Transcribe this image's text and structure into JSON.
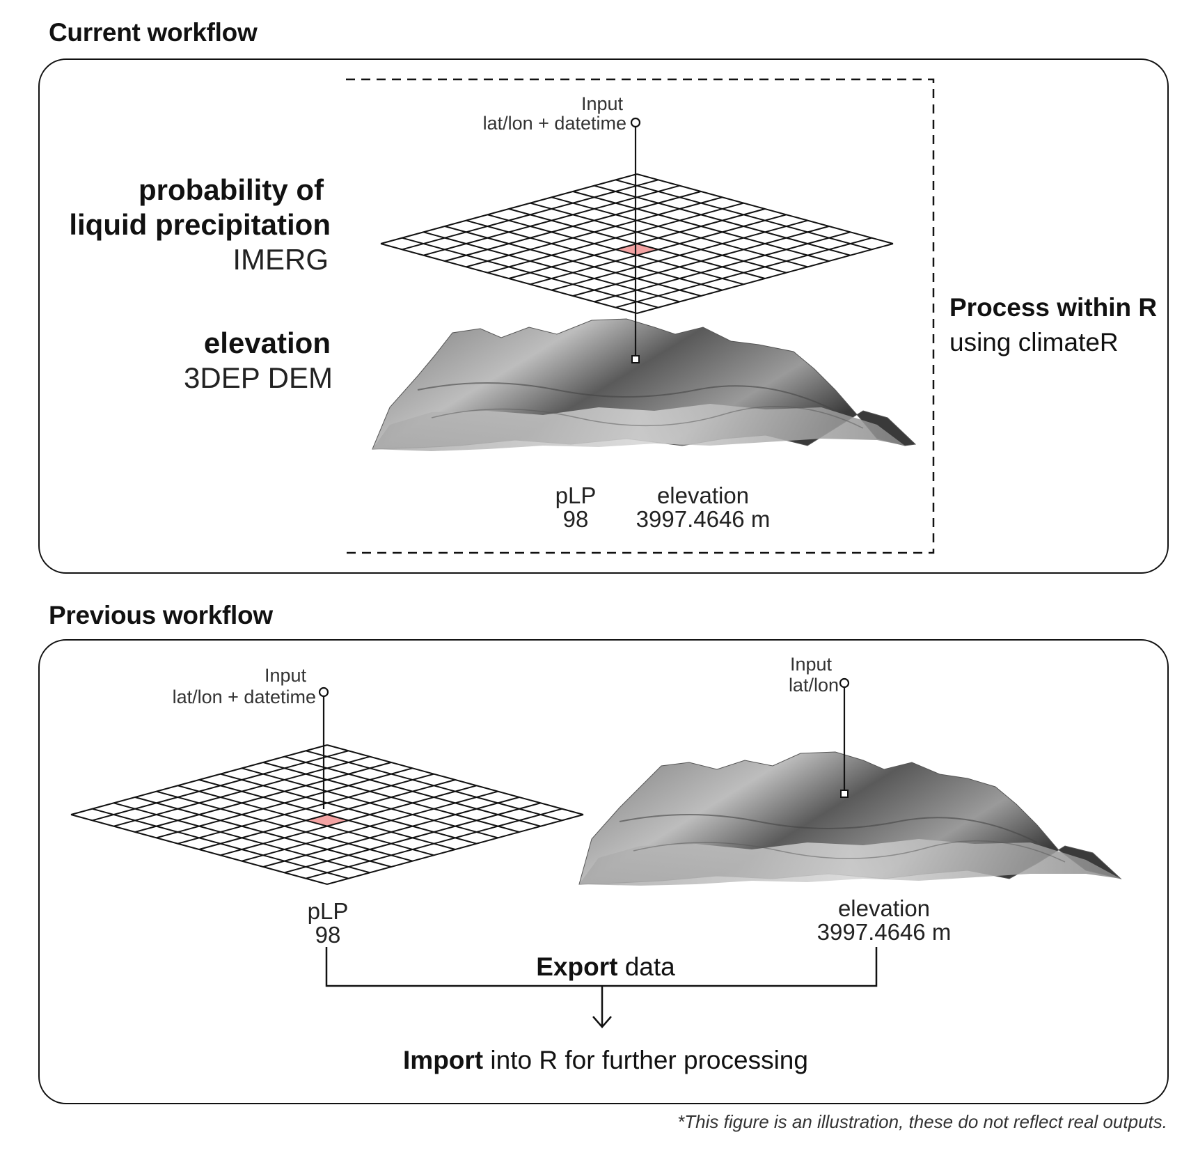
{
  "current": {
    "title": "Current workflow",
    "input_label": "Input",
    "input_sub": "lat/lon + datetime",
    "precip_line1": "probability of",
    "precip_line2": "liquid precipitation",
    "precip_source": "IMERG",
    "elev_label": "elevation",
    "elev_source": "3DEP DEM",
    "process_bold": "Process within R",
    "process_sub": "using climateR",
    "plp_label": "pLP",
    "plp_value": "98",
    "elev_out_label": "elevation",
    "elev_out_value": "3997.4646 m"
  },
  "previous": {
    "title": "Previous workflow",
    "input1_label": "Input",
    "input1_sub": "lat/lon + datetime",
    "input2_label": "Input",
    "input2_sub": "lat/lon",
    "plp_label": "pLP",
    "plp_value": "98",
    "elev_out_label": "elevation",
    "elev_out_value": "3997.4646 m",
    "export_bold": "Export",
    "export_rest": " data",
    "import_bold": "Import",
    "import_rest": " into R for further processing"
  },
  "footnote": "*This figure is an illustration, these do not reflect real outputs.",
  "colors": {
    "highlight_cell": "#f4a3a3",
    "stroke": "#111111"
  }
}
